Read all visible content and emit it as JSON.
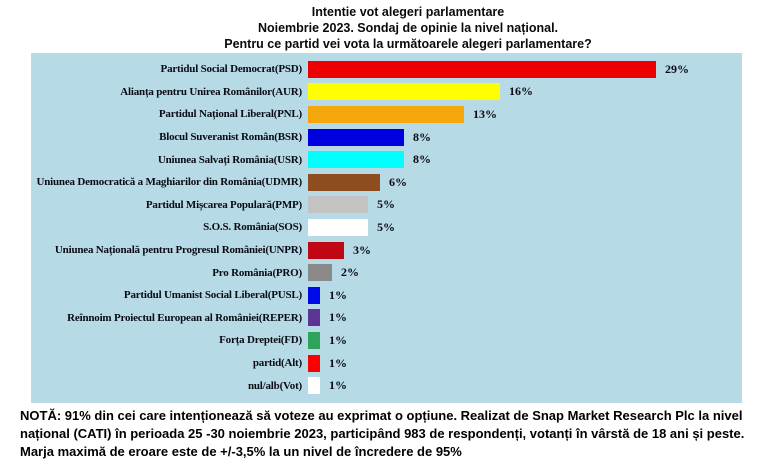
{
  "title": {
    "line1": "Intentie vot alegeri parlamentare",
    "line2": "Noiembrie 2023. Sondaj de opinie la nivel național.",
    "line3": "Pentru ce partid vei vota la următoarele alegeri parlamentare?"
  },
  "note": {
    "line1": "NOTĂ: 91% din cei care intenționează să voteze au exprimat o opțiune. Realizat de Snap Market Research Plc la nivel",
    "line2": "național (CATI) în perioada 25 -30 noiembrie 2023, participând 983 de respondenți, votanți în vârstă de 18 ani și peste.",
    "line3": "Marja maximă de eroare este de +/-3,5% la un nivel de încredere de 95%"
  },
  "chart_data": {
    "type": "bar",
    "orientation": "horizontal",
    "title": "Intentie vot alegeri parlamentare",
    "categories": [
      "Partidul Social Democrat(PSD)",
      "Alianța pentru Unirea Românilor(AUR)",
      "Partidul Național Liberal(PNL)",
      "Blocul Suveranist Român(BSR)",
      "Uniunea Salvați România(USR)",
      "Uniunea Democratică a Maghiarilor din România(UDMR)",
      "Partidul Mișcarea Populară(PMP)",
      "S.O.S. România(SOS)",
      "Uniunea Națională pentru Progresul României(UNPR)",
      "Pro România(PRO)",
      "Partidul Umanist Social Liberal(PUSL)",
      "Reînnoim Proiectul European al României(REPER)",
      "Forța Dreptei(FD)",
      "partid(Alt)",
      "nul/alb(Vot)"
    ],
    "values": [
      29,
      16,
      13,
      8,
      8,
      6,
      5,
      5,
      3,
      2,
      1,
      1,
      1,
      1,
      1
    ],
    "value_labels": [
      "29%",
      "16%",
      "13%",
      "8%",
      "8%",
      "6%",
      "5%",
      "5%",
      "3%",
      "2%",
      "1%",
      "1%",
      "1%",
      "1%",
      "1%"
    ],
    "bar_colors": [
      "#EC0000",
      "#FFFF00",
      "#F6A70B",
      "#0000DE",
      "#00FFFF",
      "#8E4D1E",
      "#C3C3C3",
      "#FFFFFF",
      "#C00814",
      "#8A8A8A",
      "#0009E8",
      "#5C3494",
      "#2FA35B",
      "#FC0000",
      "#FFFFFF"
    ],
    "plot_background": "#B6DBE7",
    "xlim": [
      0,
      30
    ],
    "grid": false,
    "legend": "none",
    "value_label_position": "right-of-bar"
  }
}
